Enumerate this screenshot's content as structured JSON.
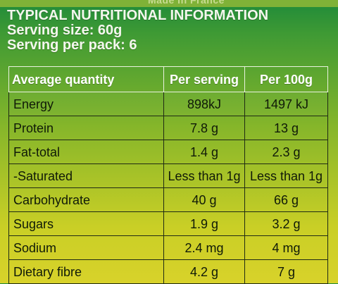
{
  "top_text": "Made in France",
  "heading": {
    "title": "TYPICAL NUTRITIONAL INFORMATION",
    "serving_size": "Serving size: 60g",
    "servings_per_pack": "Serving per pack: 6"
  },
  "table": {
    "headers": [
      "Average quantity",
      "Per serving",
      "Per 100g"
    ],
    "rows": [
      {
        "label": "Energy",
        "per_serving": "898kJ",
        "per_100g": "1497 kJ"
      },
      {
        "label": "Protein",
        "per_serving": "7.8 g",
        "per_100g": "13 g"
      },
      {
        "label": "Fat-total",
        "per_serving": "1.4 g",
        "per_100g": "2.3 g"
      },
      {
        "label": "-Saturated",
        "per_serving": "Less than 1g",
        "per_100g": "Less than 1g"
      },
      {
        "label": "Carbohydrate",
        "per_serving": "40 g",
        "per_100g": "66 g"
      },
      {
        "label": "Sugars",
        "per_serving": "1.9 g",
        "per_100g": "3.2 g"
      },
      {
        "label": "Sodium",
        "per_serving": "2.4 mg",
        "per_100g": "4 mg"
      },
      {
        "label": "Dietary fibre",
        "per_serving": "4.2 g",
        "per_100g": "7 g"
      }
    ]
  }
}
